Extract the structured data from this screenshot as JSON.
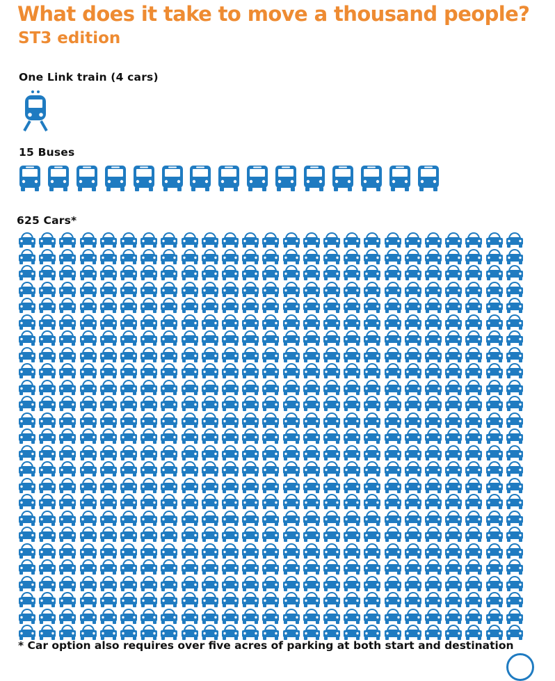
{
  "title": "What does it take to move a thousand people?",
  "subtitle": "ST3 edition",
  "sections": {
    "train": {
      "label": "One Link train (4 cars)",
      "count": 1,
      "icon": "train-icon"
    },
    "buses": {
      "label": "15 Buses",
      "count": 15,
      "icon": "bus-icon"
    },
    "cars": {
      "label": "625 Cars*",
      "count": 625,
      "icon": "car-icon"
    }
  },
  "footnote": "* Car option also requires over five acres of parking at both start and destination",
  "colors": {
    "icon_blue": "#1F7BC1",
    "title_orange": "#EE8B32",
    "text": "#111111"
  }
}
